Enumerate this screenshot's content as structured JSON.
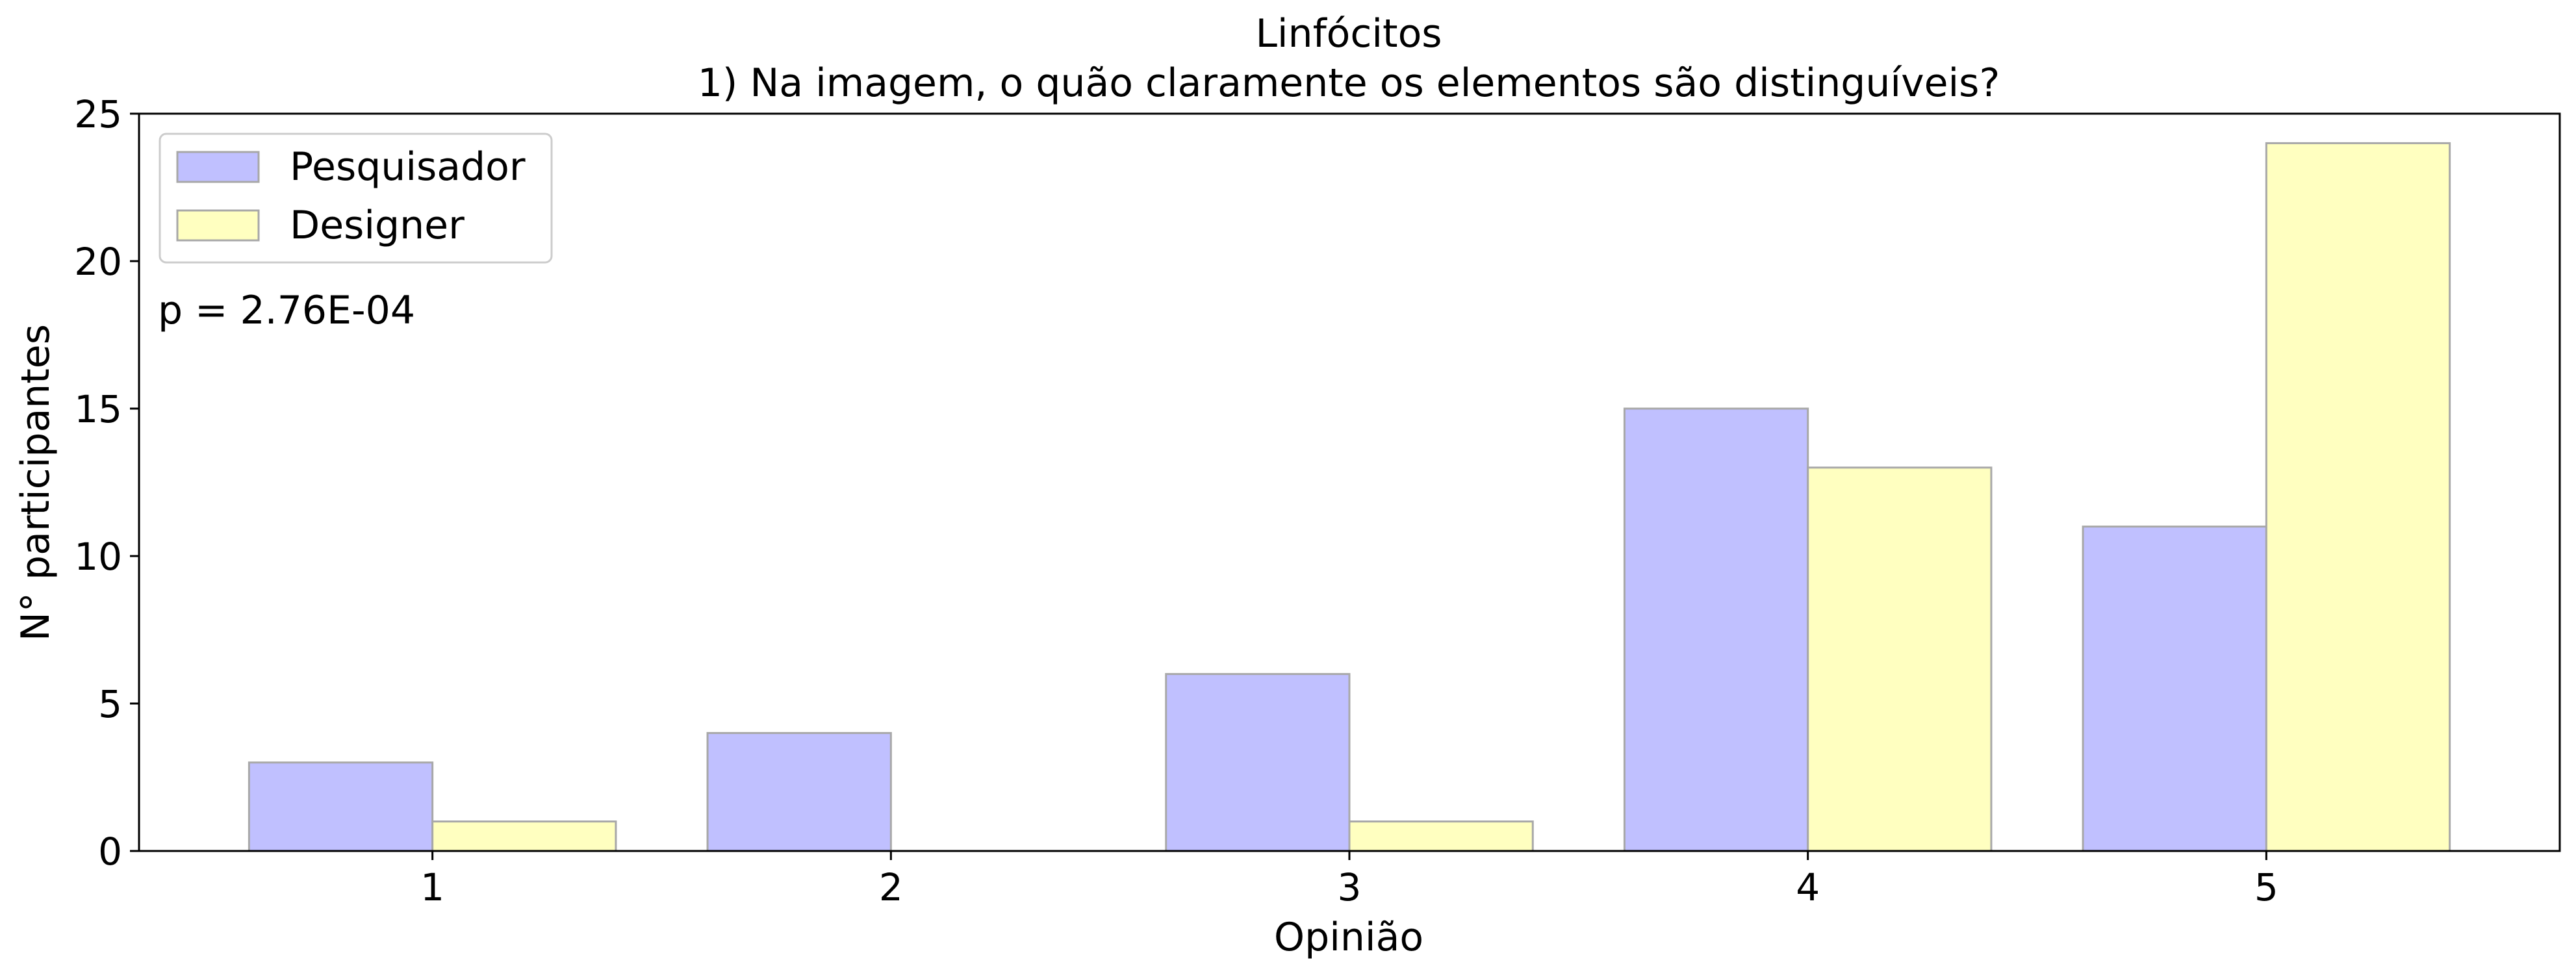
{
  "chart_data": {
    "type": "bar",
    "title": "Linfócitos",
    "subtitle": "1) Na imagem, o quão claramente os elementos são distinguíveis?",
    "xlabel": "Opinião",
    "ylabel": "N° participantes",
    "categories": [
      "1",
      "2",
      "3",
      "4",
      "5"
    ],
    "series": [
      {
        "name": "Pesquisador",
        "values": [
          3,
          4,
          6,
          15,
          11
        ],
        "color": "#c0c0ff"
      },
      {
        "name": "Designer",
        "values": [
          1,
          0,
          1,
          13,
          24
        ],
        "color": "#ffffc0"
      }
    ],
    "ylim": [
      0,
      25
    ],
    "yticks": [
      0,
      5,
      10,
      15,
      20,
      25
    ],
    "grid": false,
    "legend": "top-left",
    "annotation": "p = 2.76E-04",
    "edge_color": "#a8a8a8"
  }
}
